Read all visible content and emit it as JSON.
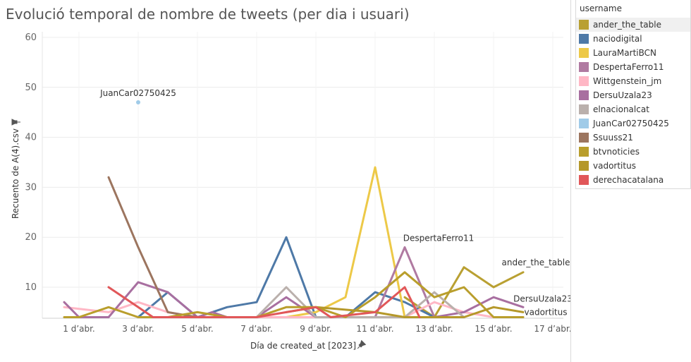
{
  "chart_data": {
    "type": "line",
    "title": "Evolució temporal de nombre de tweets (per dia i usuari)",
    "xlabel": "Día de created_at [2023]",
    "ylabel": "Recuento de A(4).csv",
    "ylim": [
      4,
      60
    ],
    "xlim": [
      0,
      17
    ],
    "yticks": [
      10,
      20,
      30,
      40,
      50,
      60
    ],
    "x_ticks": [
      {
        "x": 1,
        "label": "1 d’abr."
      },
      {
        "x": 3,
        "label": "3 d’abr."
      },
      {
        "x": 5,
        "label": "5 d’abr."
      },
      {
        "x": 7,
        "label": "7 d’abr."
      },
      {
        "x": 9,
        "label": "9 d’abr."
      },
      {
        "x": 11,
        "label": "11 d’abr."
      },
      {
        "x": 13,
        "label": "13 d’abr."
      },
      {
        "x": 15,
        "label": "15 d’abr."
      },
      {
        "x": 17,
        "label": "17 d’abr."
      }
    ],
    "legend_title": "username",
    "legend_position": "right",
    "series": [
      {
        "name": "ander_the_table",
        "color": "#b9a032",
        "x": [
          12,
          13,
          14,
          15,
          16
        ],
        "values": [
          8,
          4,
          14,
          10,
          13
        ]
      },
      {
        "name": "naciodigital",
        "color": "#4e79a7",
        "x": [
          3,
          4,
          5,
          6,
          7,
          8,
          9,
          10,
          11,
          12,
          13
        ],
        "values": [
          4,
          9,
          4,
          6,
          7,
          20,
          4,
          4,
          9,
          7,
          4
        ]
      },
      {
        "name": "LauraMartiBCN",
        "color": "#edc948",
        "x": [
          8,
          9,
          10,
          11,
          12
        ],
        "values": [
          4,
          5,
          8,
          34,
          4
        ]
      },
      {
        "name": "DespertaFerro11",
        "color": "#b07aa1",
        "x": [
          11,
          12,
          13
        ],
        "values": [
          4,
          18,
          4
        ]
      },
      {
        "name": "Wittgenstein_jm",
        "color": "#ffb7c5",
        "x": [
          0.5,
          2,
          3,
          4,
          5,
          12,
          13,
          14,
          15,
          16
        ],
        "values": [
          6,
          5,
          7,
          5,
          4,
          4,
          7,
          5,
          4,
          4
        ]
      },
      {
        "name": "DersuUzala23",
        "color": "#a86fa0",
        "x": [
          0.5,
          1,
          2,
          3,
          4,
          5,
          5.5,
          6,
          7,
          8,
          9,
          13,
          14,
          15,
          16
        ],
        "values": [
          7,
          4,
          4,
          11,
          9,
          4,
          5,
          4,
          4,
          8,
          4,
          4,
          5,
          8,
          6
        ]
      },
      {
        "name": "elnacionalcat",
        "color": "#bab0ac",
        "x": [
          7,
          8,
          9,
          12,
          13,
          14
        ],
        "values": [
          4,
          10,
          4,
          4,
          9,
          4
        ]
      },
      {
        "name": "JuanCar02750425",
        "color": "#a0cbe8",
        "x": [
          3
        ],
        "values": [
          47
        ]
      },
      {
        "name": "Ssuuss21",
        "color": "#9c755f",
        "x": [
          2,
          3,
          4,
          5
        ],
        "values": [
          32,
          18,
          5,
          4
        ]
      },
      {
        "name": "btvnoticies",
        "color": "#b99e2c",
        "x": [
          0.5,
          1,
          2,
          3,
          4,
          5,
          6,
          7,
          8,
          9,
          10,
          11,
          12,
          13,
          14,
          15,
          16
        ],
        "values": [
          4,
          4,
          6,
          4,
          4,
          5,
          4,
          4,
          6,
          6,
          4,
          8,
          13,
          8,
          10,
          4,
          4
        ]
      },
      {
        "name": "vadortitus",
        "color": "#b5982a",
        "x": [
          8,
          9,
          10,
          11,
          12,
          13,
          14,
          15,
          16
        ],
        "values": [
          5,
          6,
          5.5,
          5,
          4,
          4,
          4,
          6,
          5
        ]
      },
      {
        "name": "derechacatalana",
        "color": "#e15759",
        "x": [
          2,
          3,
          3.5,
          7,
          8,
          9,
          9.5,
          11,
          12,
          12.5
        ],
        "values": [
          10,
          6,
          4,
          4,
          5,
          6,
          4,
          5,
          10,
          4
        ]
      }
    ],
    "annotations": [
      {
        "text": "JuanCar02750425",
        "x": 3,
        "y": 47
      },
      {
        "text": "DespertaFerro11",
        "x": 12,
        "y": 18
      },
      {
        "text": "ander_the_table",
        "x": 16,
        "y": 13
      },
      {
        "text": "DersuUzala23",
        "x": 16,
        "y": 6
      },
      {
        "text": "vadortitus",
        "x": 16,
        "y": 5
      }
    ]
  }
}
